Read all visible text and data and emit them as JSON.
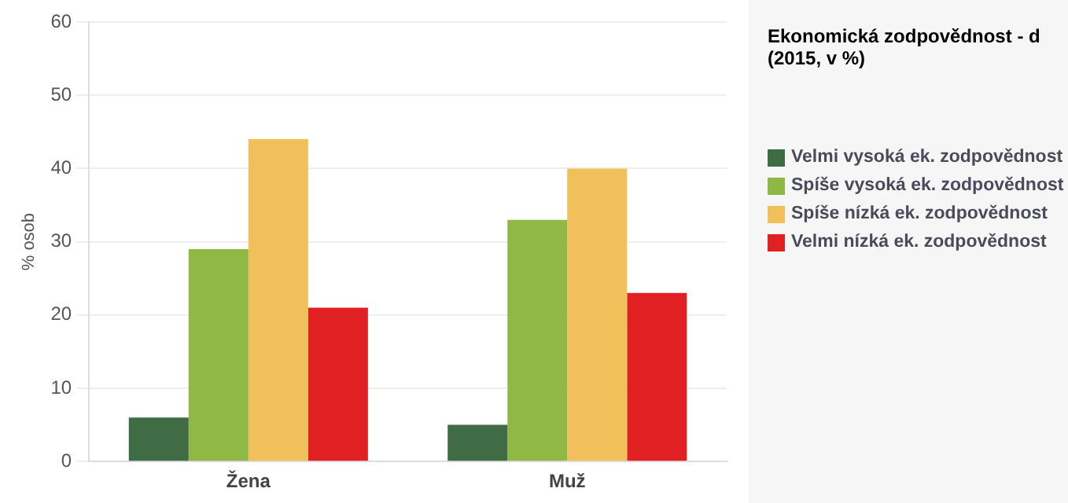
{
  "chart_data": {
    "type": "bar",
    "title": "Ekonomická zodpovědnost - d (2015, v %)",
    "ylabel": "% osob",
    "categories": [
      "Žena",
      "Muž"
    ],
    "series": [
      {
        "name": "Velmi vysoká ek. zodpovědnost",
        "color": "#3f6b45",
        "values": [
          6,
          5
        ]
      },
      {
        "name": "Spíše vysoká ek. zodpovědnost",
        "color": "#8fb944",
        "values": [
          29,
          33
        ]
      },
      {
        "name": "Spíše nízká ek. zodpovědnost",
        "color": "#f2c05a",
        "values": [
          44,
          40
        ]
      },
      {
        "name": "Velmi nízká ek. zodpovědnost",
        "color": "#e12024",
        "values": [
          21,
          23
        ]
      }
    ],
    "ylim": [
      0,
      60
    ],
    "yticks": [
      0,
      10,
      20,
      30,
      40,
      50,
      60
    ],
    "grid": "y",
    "legend": "right"
  }
}
